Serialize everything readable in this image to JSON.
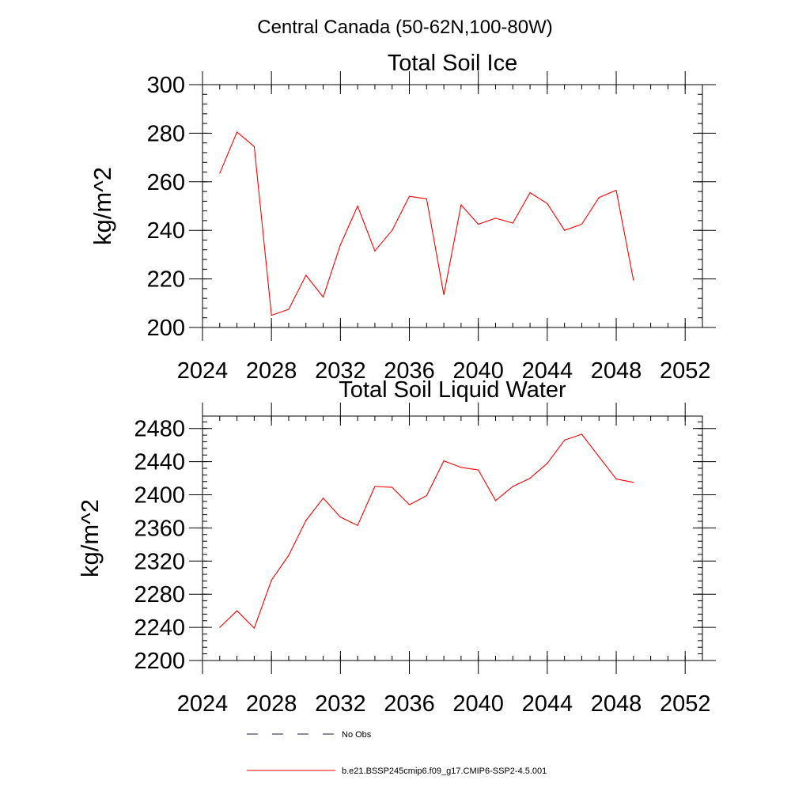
{
  "suptitle": "Central Canada (50-62N,100-80W)",
  "chart_data": [
    {
      "type": "line",
      "title": "Total Soil Ice",
      "xlabel": "",
      "ylabel": "kg/m^2",
      "xlim": [
        2024,
        2053
      ],
      "ylim": [
        200,
        300
      ],
      "x_ticks": [
        2024,
        2028,
        2032,
        2036,
        2040,
        2044,
        2048,
        2052
      ],
      "y_ticks": [
        200,
        220,
        240,
        260,
        280,
        300
      ],
      "grid": false,
      "x": [
        2025,
        2026,
        2027,
        2028,
        2029,
        2030,
        2031,
        2032,
        2033,
        2034,
        2035,
        2036,
        2037,
        2038,
        2039,
        2040,
        2041,
        2042,
        2043,
        2044,
        2045,
        2046,
        2047,
        2048,
        2049
      ],
      "series": [
        {
          "name": "b.e21.BSSP245cmip6.f09_g17.CMIP6-SSP2-4.5.001",
          "color": "#ff0000",
          "values": [
            263.5,
            280.5,
            274.5,
            205,
            207.5,
            221.5,
            212.5,
            234,
            250,
            231.5,
            240,
            254,
            253,
            213.5,
            250.5,
            242.5,
            245,
            243,
            255.5,
            251,
            240,
            242.5,
            253.5,
            256.5,
            219.5
          ]
        }
      ]
    },
    {
      "type": "line",
      "title": "Total Soil Liquid Water",
      "xlabel": "",
      "ylabel": "kg/m^2",
      "xlim": [
        2024,
        2053
      ],
      "ylim": [
        2200,
        2495
      ],
      "x_ticks": [
        2024,
        2028,
        2032,
        2036,
        2040,
        2044,
        2048,
        2052
      ],
      "y_ticks": [
        2200,
        2240,
        2280,
        2320,
        2360,
        2400,
        2440,
        2480
      ],
      "grid": false,
      "x": [
        2025,
        2026,
        2027,
        2028,
        2029,
        2030,
        2031,
        2032,
        2033,
        2034,
        2035,
        2036,
        2037,
        2038,
        2039,
        2040,
        2041,
        2042,
        2043,
        2044,
        2045,
        2046,
        2047,
        2048,
        2049
      ],
      "series": [
        {
          "name": "b.e21.BSSP245cmip6.f09_g17.CMIP6-SSP2-4.5.001",
          "color": "#ff0000",
          "values": [
            2240,
            2260,
            2239,
            2297,
            2327,
            2369,
            2396,
            2373,
            2363,
            2410,
            2409,
            2388,
            2399,
            2441,
            2433,
            2430,
            2393,
            2410,
            2420,
            2438,
            2466,
            2473,
            2446,
            2419,
            2415
          ]
        }
      ]
    }
  ],
  "legend": {
    "placement": "bottom",
    "entries": [
      {
        "label": "No Obs",
        "style": "dashed",
        "color": "#1a1a66"
      },
      {
        "label": "b.e21.BSSP245cmip6.f09_g17.CMIP6-SSP2-4.5.001",
        "style": "solid",
        "color": "#ff0000"
      }
    ]
  }
}
